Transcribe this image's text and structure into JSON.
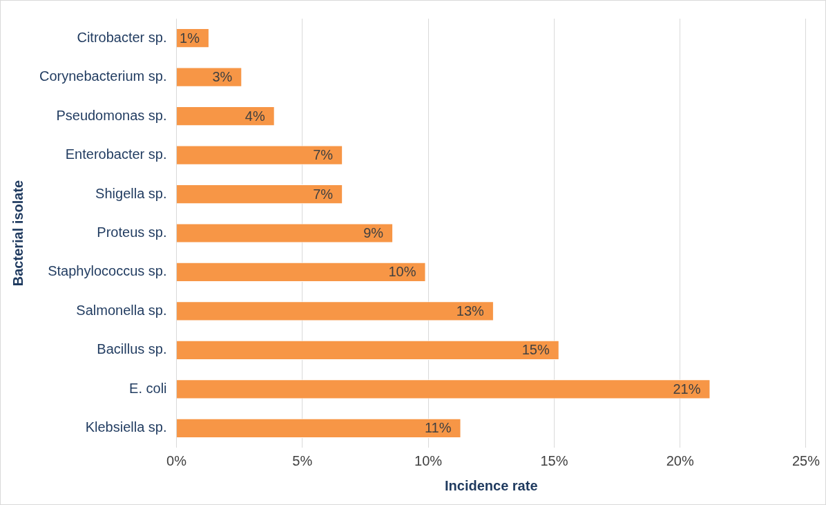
{
  "chart_data": {
    "type": "bar",
    "orientation": "horizontal",
    "xlabel": "Incidence rate",
    "ylabel": "Bacterial isolate",
    "categories": [
      "Citrobacter sp.",
      "Corynebacterium sp.",
      "Pseudomonas sp.",
      "Enterobacter sp.",
      "Shigella sp.",
      "Proteus sp.",
      "Staphylococcus sp.",
      "Salmonella sp.",
      "Bacillus sp.",
      "E. coli",
      "Klebsiella sp."
    ],
    "values": [
      1.3,
      2.6,
      3.9,
      6.6,
      6.6,
      8.6,
      9.9,
      12.6,
      15.2,
      21.2,
      11.3
    ],
    "value_labels": [
      "1%",
      "3%",
      "4%",
      "7%",
      "7%",
      "9%",
      "10%",
      "13%",
      "15%",
      "21%",
      "11%"
    ],
    "color": "#f79646",
    "xlim": [
      0,
      25
    ],
    "xticks": [
      {
        "value": 0,
        "label": "0%"
      },
      {
        "value": 5,
        "label": "5%"
      },
      {
        "value": 10,
        "label": "10%"
      },
      {
        "value": 15,
        "label": "15%"
      },
      {
        "value": 20,
        "label": "20%"
      },
      {
        "value": 25,
        "label": "25%"
      }
    ],
    "grid": "x",
    "legend": false
  }
}
